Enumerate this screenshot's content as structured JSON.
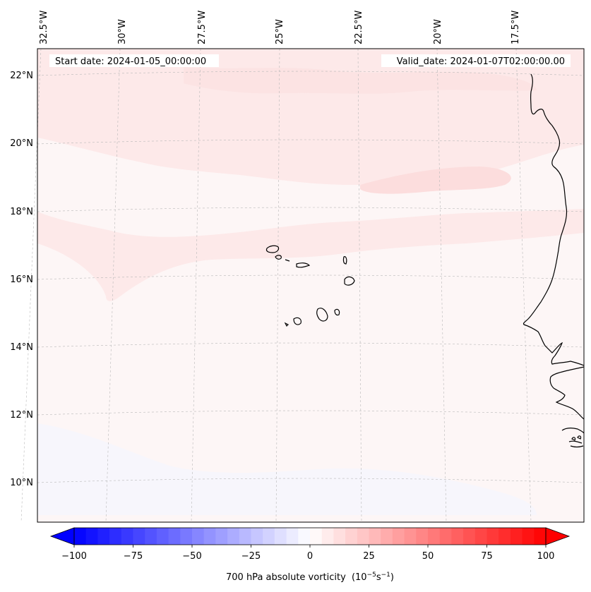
{
  "header": {
    "start_date": "Start date: 2024-01-05_00:00:00",
    "valid_date": "Valid_date: 2024-01-07T02:00:00.00"
  },
  "map": {
    "variable": "700 hPa absolute vorticity",
    "units_prefix": "(10",
    "units_exp1": "−5",
    "units_mid": "s",
    "units_exp2": "−1",
    "units_suffix": ")",
    "lon_labels": [
      "32.5°W",
      "30°W",
      "27.5°W",
      "25°W",
      "22.5°W",
      "20°W",
      "17.5°W"
    ],
    "lat_labels": [
      "22°N",
      "20°N",
      "18°N",
      "16°N",
      "14°N",
      "12°N",
      "10°N"
    ],
    "colors": {
      "background": "#fdf6f6",
      "band_light": "#fde9e9",
      "band_mid": "#fcdddd",
      "weak_negative": "#f4f6ff",
      "coastline": "#000000",
      "gridline": "#b0b0b0"
    }
  },
  "colorbar": {
    "ticks": [
      "−100",
      "−75",
      "−50",
      "−25",
      "0",
      "25",
      "50",
      "75",
      "100"
    ],
    "min": -100,
    "max": 100,
    "step": 5,
    "colormap": "bwr",
    "extend": "both"
  }
}
